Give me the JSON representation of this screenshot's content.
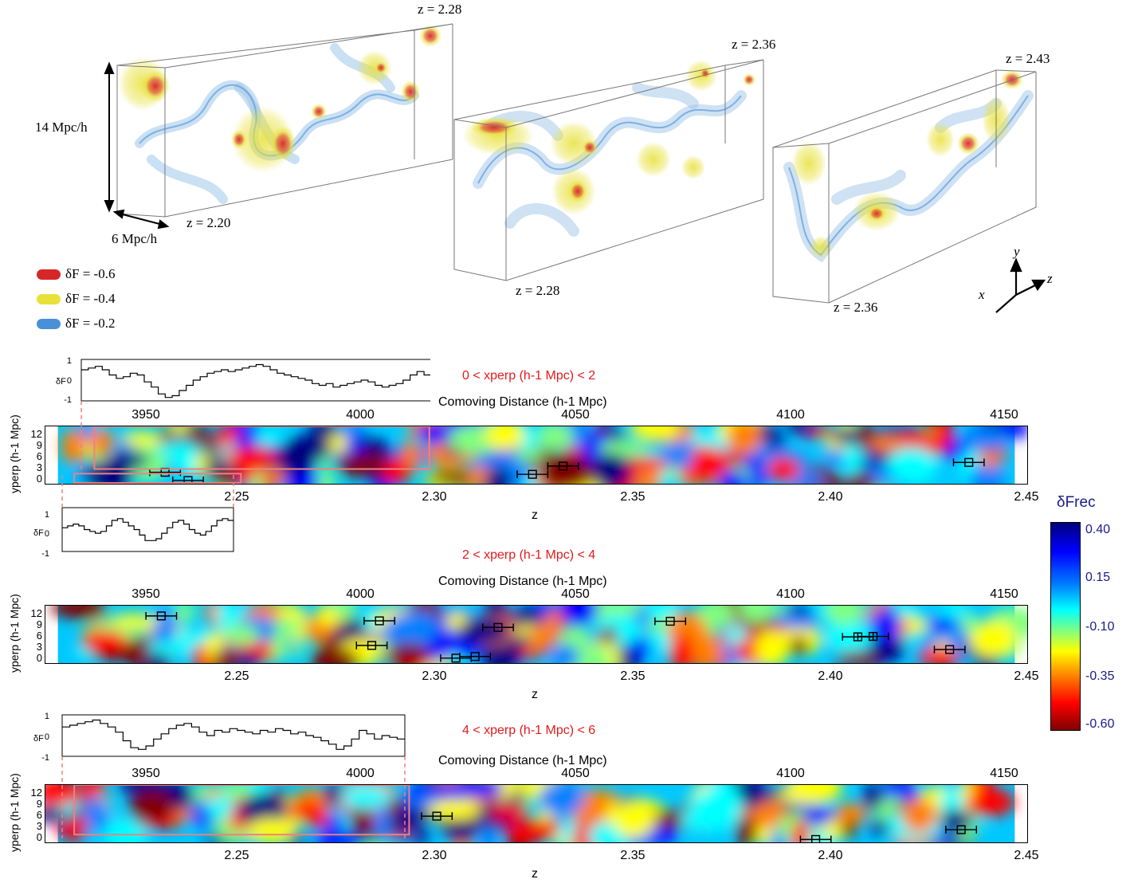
{
  "top_panel": {
    "boxes": [
      {
        "z_end_label": "z = 2.28",
        "z_start_label": "z = 2.20"
      },
      {
        "z_end_label": "z = 2.36",
        "z_start_label": "z = 2.28"
      },
      {
        "z_end_label": "z = 2.43",
        "z_start_label": "z = 2.36"
      }
    ],
    "scale_height": "14 Mpc/h",
    "scale_width": "6 Mpc/h",
    "legend": [
      {
        "label": "δF = -0.6",
        "color": "#d62728"
      },
      {
        "label": "δF = -0.4",
        "color": "#e8e13a"
      },
      {
        "label": "δF = -0.2",
        "color": "#4a90d9"
      }
    ],
    "axes": {
      "x": "x",
      "y": "y",
      "z": "z"
    }
  },
  "chart_data": [
    {
      "type": "heatmap",
      "title": "0 < xperp (h-1 Mpc) < 2",
      "top_axis_label": "Comoving Distance (h-1 Mpc)",
      "top_ticks": [
        "3950",
        "4000",
        "4050",
        "4100",
        "4150"
      ],
      "xlabel": "z",
      "x_ticks": [
        "2.25",
        "2.30",
        "2.35",
        "2.40",
        "2.45"
      ],
      "ylabel": "yperp (h-1 Mpc)",
      "y_ticks": [
        "12",
        "9",
        "6",
        "3",
        "0"
      ],
      "xlim": [
        2.2,
        2.45
      ],
      "ylim": [
        0,
        14
      ],
      "markers": [
        {
          "z": 2.228,
          "y": 2.8,
          "xerr": 0.004
        },
        {
          "z": 2.234,
          "y": 0.8,
          "xerr": 0.004
        },
        {
          "z": 2.324,
          "y": 2.3,
          "xerr": 0.004
        },
        {
          "z": 2.332,
          "y": 4.3,
          "xerr": 0.004
        },
        {
          "z": 2.438,
          "y": 5.2,
          "xerr": 0.004
        }
      ],
      "insets": [
        {
          "ylabel": "δF",
          "y_ticks": [
            "1",
            "0",
            "-1"
          ],
          "ylim": [
            -1.2,
            1.2
          ],
          "profile": [
            0.6,
            0.7,
            0.8,
            0.6,
            0.3,
            0.1,
            0.2,
            0.4,
            0.3,
            -0.1,
            -0.4,
            -0.8,
            -1.0,
            -0.9,
            -0.6,
            -0.3,
            0.0,
            0.2,
            0.4,
            0.5,
            0.6,
            0.5,
            0.6,
            0.7,
            0.8,
            0.9,
            0.8,
            0.6,
            0.4,
            0.3,
            0.2,
            0.1,
            0.0,
            -0.2,
            -0.3,
            -0.2,
            -0.4,
            -0.3,
            -0.2,
            -0.1,
            0.0,
            -0.1,
            -0.3,
            -0.4,
            -0.3,
            -0.2,
            0.0,
            0.3,
            0.5,
            0.3,
            0.0,
            -0.2,
            0.1,
            0.0
          ]
        },
        {
          "ylabel": "δF",
          "y_ticks": [
            "1",
            "0",
            "-1"
          ],
          "ylim": [
            -1.2,
            1.2
          ],
          "profile": [
            0.1,
            0.2,
            0.3,
            0.2,
            0.0,
            -0.1,
            -0.2,
            -0.1,
            0.2,
            0.5,
            0.6,
            0.4,
            0.2,
            0.0,
            -0.3,
            -0.6,
            -0.6,
            -0.5,
            -0.2,
            0.1,
            0.4,
            0.5,
            0.3,
            0.0,
            -0.2,
            -0.3,
            -0.1,
            0.2,
            0.5,
            0.6,
            0.5
          ]
        }
      ]
    },
    {
      "type": "heatmap",
      "title": "2 < xperp (h-1 Mpc) < 4",
      "top_axis_label": "Comoving Distance (h-1 Mpc)",
      "top_ticks": [
        "3950",
        "4000",
        "4050",
        "4100",
        "4150"
      ],
      "xlabel": "z",
      "x_ticks": [
        "2.25",
        "2.30",
        "2.35",
        "2.40",
        "2.45"
      ],
      "ylabel": "yperp (h-1 Mpc)",
      "y_ticks": [
        "12",
        "9",
        "6",
        "3",
        "0"
      ],
      "xlim": [
        2.2,
        2.45
      ],
      "ylim": [
        0,
        14
      ],
      "markers": [
        {
          "z": 2.227,
          "y": 11.5,
          "xerr": 0.004
        },
        {
          "z": 2.284,
          "y": 10.3,
          "xerr": 0.004
        },
        {
          "z": 2.282,
          "y": 4.3,
          "xerr": 0.004
        },
        {
          "z": 2.304,
          "y": 1.2,
          "xerr": 0.004
        },
        {
          "z": 2.309,
          "y": 1.6,
          "xerr": 0.004
        },
        {
          "z": 2.315,
          "y": 8.7,
          "xerr": 0.004
        },
        {
          "z": 2.36,
          "y": 10.2,
          "xerr": 0.004
        },
        {
          "z": 2.409,
          "y": 6.4,
          "xerr": 0.004
        },
        {
          "z": 2.413,
          "y": 6.5,
          "xerr": 0.004
        },
        {
          "z": 2.433,
          "y": 3.3,
          "xerr": 0.004
        }
      ]
    },
    {
      "type": "heatmap",
      "title": "4 < xperp (h-1 Mpc) < 6",
      "top_axis_label": "Comoving Distance (h-1 Mpc)",
      "top_ticks": [
        "3950",
        "4000",
        "4050",
        "4100",
        "4150"
      ],
      "xlabel": "z",
      "x_ticks": [
        "2.25",
        "2.30",
        "2.35",
        "2.40",
        "2.45"
      ],
      "ylabel": "yperp (h-1 Mpc)",
      "y_ticks": [
        "12",
        "9",
        "6",
        "3",
        "0"
      ],
      "xlim": [
        2.2,
        2.45
      ],
      "ylim": [
        0,
        14
      ],
      "markers": [
        {
          "z": 2.299,
          "y": 6.4,
          "xerr": 0.004
        },
        {
          "z": 2.398,
          "y": 0.7,
          "xerr": 0.004
        },
        {
          "z": 2.436,
          "y": 3.1,
          "xerr": 0.004
        }
      ],
      "insets": [
        {
          "ylabel": "δF",
          "y_ticks": [
            "1",
            "0",
            "-1"
          ],
          "ylim": [
            -1.2,
            1.2
          ],
          "profile": [
            0.5,
            0.6,
            0.7,
            0.8,
            0.9,
            0.7,
            0.5,
            0.2,
            -0.3,
            -0.7,
            -0.8,
            -0.6,
            -0.2,
            0.1,
            0.4,
            0.6,
            0.7,
            0.5,
            0.2,
            0.0,
            0.3,
            0.2,
            0.4,
            0.3,
            0.2,
            0.1,
            0.3,
            0.2,
            0.4,
            0.3,
            0.1,
            0.2,
            0.0,
            -0.1,
            -0.3,
            -0.5,
            -0.8,
            -0.6,
            -0.2,
            0.3,
            0.1,
            -0.2,
            0.0,
            -0.1,
            -0.2
          ]
        }
      ]
    }
  ],
  "colorbar": {
    "label": "δFrec",
    "ticks": [
      "0.40",
      "0.15",
      "-0.10",
      "-0.35",
      "-0.60"
    ]
  }
}
